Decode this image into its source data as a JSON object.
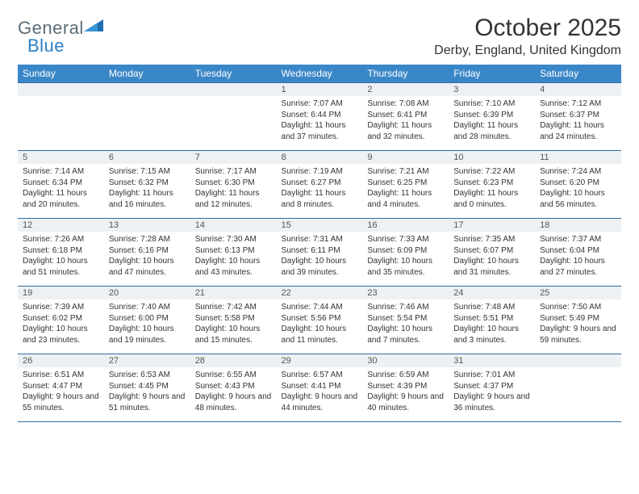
{
  "brand": {
    "general": "General",
    "blue": "Blue"
  },
  "title": "October 2025",
  "location": "Derby, England, United Kingdom",
  "colors": {
    "header_bg": "#3a87c8",
    "header_text": "#ffffff",
    "rule": "#2e6da4",
    "daynum_bg": "#eef1f3",
    "body_text": "#333333",
    "logo_gray": "#5a6b77",
    "logo_blue": "#2a7fc4"
  },
  "day_names": [
    "Sunday",
    "Monday",
    "Tuesday",
    "Wednesday",
    "Thursday",
    "Friday",
    "Saturday"
  ],
  "weeks": [
    [
      null,
      null,
      null,
      {
        "n": "1",
        "sr": "7:07 AM",
        "ss": "6:44 PM",
        "dl": "11 hours and 37 minutes."
      },
      {
        "n": "2",
        "sr": "7:08 AM",
        "ss": "6:41 PM",
        "dl": "11 hours and 32 minutes."
      },
      {
        "n": "3",
        "sr": "7:10 AM",
        "ss": "6:39 PM",
        "dl": "11 hours and 28 minutes."
      },
      {
        "n": "4",
        "sr": "7:12 AM",
        "ss": "6:37 PM",
        "dl": "11 hours and 24 minutes."
      }
    ],
    [
      {
        "n": "5",
        "sr": "7:14 AM",
        "ss": "6:34 PM",
        "dl": "11 hours and 20 minutes."
      },
      {
        "n": "6",
        "sr": "7:15 AM",
        "ss": "6:32 PM",
        "dl": "11 hours and 16 minutes."
      },
      {
        "n": "7",
        "sr": "7:17 AM",
        "ss": "6:30 PM",
        "dl": "11 hours and 12 minutes."
      },
      {
        "n": "8",
        "sr": "7:19 AM",
        "ss": "6:27 PM",
        "dl": "11 hours and 8 minutes."
      },
      {
        "n": "9",
        "sr": "7:21 AM",
        "ss": "6:25 PM",
        "dl": "11 hours and 4 minutes."
      },
      {
        "n": "10",
        "sr": "7:22 AM",
        "ss": "6:23 PM",
        "dl": "11 hours and 0 minutes."
      },
      {
        "n": "11",
        "sr": "7:24 AM",
        "ss": "6:20 PM",
        "dl": "10 hours and 56 minutes."
      }
    ],
    [
      {
        "n": "12",
        "sr": "7:26 AM",
        "ss": "6:18 PM",
        "dl": "10 hours and 51 minutes."
      },
      {
        "n": "13",
        "sr": "7:28 AM",
        "ss": "6:16 PM",
        "dl": "10 hours and 47 minutes."
      },
      {
        "n": "14",
        "sr": "7:30 AM",
        "ss": "6:13 PM",
        "dl": "10 hours and 43 minutes."
      },
      {
        "n": "15",
        "sr": "7:31 AM",
        "ss": "6:11 PM",
        "dl": "10 hours and 39 minutes."
      },
      {
        "n": "16",
        "sr": "7:33 AM",
        "ss": "6:09 PM",
        "dl": "10 hours and 35 minutes."
      },
      {
        "n": "17",
        "sr": "7:35 AM",
        "ss": "6:07 PM",
        "dl": "10 hours and 31 minutes."
      },
      {
        "n": "18",
        "sr": "7:37 AM",
        "ss": "6:04 PM",
        "dl": "10 hours and 27 minutes."
      }
    ],
    [
      {
        "n": "19",
        "sr": "7:39 AM",
        "ss": "6:02 PM",
        "dl": "10 hours and 23 minutes."
      },
      {
        "n": "20",
        "sr": "7:40 AM",
        "ss": "6:00 PM",
        "dl": "10 hours and 19 minutes."
      },
      {
        "n": "21",
        "sr": "7:42 AM",
        "ss": "5:58 PM",
        "dl": "10 hours and 15 minutes."
      },
      {
        "n": "22",
        "sr": "7:44 AM",
        "ss": "5:56 PM",
        "dl": "10 hours and 11 minutes."
      },
      {
        "n": "23",
        "sr": "7:46 AM",
        "ss": "5:54 PM",
        "dl": "10 hours and 7 minutes."
      },
      {
        "n": "24",
        "sr": "7:48 AM",
        "ss": "5:51 PM",
        "dl": "10 hours and 3 minutes."
      },
      {
        "n": "25",
        "sr": "7:50 AM",
        "ss": "5:49 PM",
        "dl": "9 hours and 59 minutes."
      }
    ],
    [
      {
        "n": "26",
        "sr": "6:51 AM",
        "ss": "4:47 PM",
        "dl": "9 hours and 55 minutes."
      },
      {
        "n": "27",
        "sr": "6:53 AM",
        "ss": "4:45 PM",
        "dl": "9 hours and 51 minutes."
      },
      {
        "n": "28",
        "sr": "6:55 AM",
        "ss": "4:43 PM",
        "dl": "9 hours and 48 minutes."
      },
      {
        "n": "29",
        "sr": "6:57 AM",
        "ss": "4:41 PM",
        "dl": "9 hours and 44 minutes."
      },
      {
        "n": "30",
        "sr": "6:59 AM",
        "ss": "4:39 PM",
        "dl": "9 hours and 40 minutes."
      },
      {
        "n": "31",
        "sr": "7:01 AM",
        "ss": "4:37 PM",
        "dl": "9 hours and 36 minutes."
      },
      null
    ]
  ],
  "labels": {
    "sunrise": "Sunrise:",
    "sunset": "Sunset:",
    "daylight": "Daylight:"
  }
}
